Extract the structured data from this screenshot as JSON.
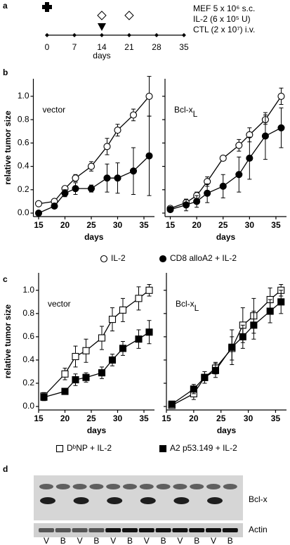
{
  "panels": [
    "a",
    "b",
    "c",
    "d"
  ],
  "timeline": {
    "ticks": [
      0,
      7,
      14,
      21,
      28,
      35
    ],
    "xlabel": "days",
    "events": [
      {
        "label": "MEF 5 x 10⁶ s.c.",
        "days": [
          0
        ]
      },
      {
        "label": "IL-2 (6 x 10⁵ U)",
        "days": [
          14,
          21
        ]
      },
      {
        "label": "CTL (2 x 10⁷) i.v.",
        "days": [
          14
        ]
      }
    ]
  },
  "chart_data": [
    {
      "type": "line",
      "title": "vector",
      "xlabel": "days",
      "ylabel": "relative tumor size",
      "legend": true,
      "xlim": [
        14,
        37
      ],
      "xticks": [
        15,
        20,
        25,
        30,
        35
      ],
      "ylim": [
        -0.03,
        1.15
      ],
      "yticks": [
        {
          "value": 0,
          "label": "0.0"
        },
        0.2,
        0.4,
        0.6,
        0.8,
        {
          "value": 1,
          "label": "1.0"
        }
      ],
      "x": [
        15,
        18,
        20,
        22,
        25,
        28,
        30,
        33,
        36
      ],
      "series": [
        {
          "name": "IL-2",
          "marker": "circle",
          "color": "#000000",
          "fill": "#ffffff",
          "values": [
            0.08,
            0.1,
            0.21,
            0.3,
            0.4,
            0.57,
            0.71,
            0.84,
            1.0
          ],
          "errors": [
            0.01,
            0.01,
            0.02,
            0.03,
            0.04,
            0.07,
            0.05,
            0.05,
            0.17
          ]
        },
        {
          "name": "CD8 alloA2 + IL-2",
          "marker": "circle",
          "color": "#000000",
          "fill": "#000000",
          "values": [
            0.0,
            0.06,
            0.17,
            0.21,
            0.21,
            0.3,
            0.3,
            0.36,
            0.49
          ],
          "errors": [
            0.01,
            0.02,
            0.03,
            0.05,
            0.03,
            0.12,
            0.13,
            0.2,
            0.34
          ]
        }
      ]
    },
    {
      "type": "line",
      "title": "Bcl-x",
      "title_subscript": "L",
      "xlabel": "days",
      "show_ytick_labels": false,
      "xlim": [
        14,
        37
      ],
      "xticks": [
        15,
        20,
        25,
        30,
        35
      ],
      "ylim": [
        -0.03,
        1.15
      ],
      "yticks": [
        0,
        0.2,
        0.4,
        0.6,
        0.8,
        1
      ],
      "x": [
        15,
        18,
        20,
        22,
        25,
        28,
        30,
        33,
        36
      ],
      "series": [
        {
          "marker": "circle",
          "color": "#000000",
          "fill": "#ffffff",
          "values": [
            0.04,
            0.09,
            0.15,
            0.27,
            0.47,
            0.58,
            0.67,
            0.8,
            1.0
          ],
          "errors": [
            0.01,
            0.02,
            0.03,
            0.04,
            0.02,
            0.05,
            0.06,
            0.04,
            0.07
          ]
        },
        {
          "marker": "circle",
          "color": "#000000",
          "fill": "#000000",
          "values": [
            0.03,
            0.07,
            0.1,
            0.17,
            0.23,
            0.33,
            0.47,
            0.66,
            0.73
          ],
          "errors": [
            0.01,
            0.05,
            0.05,
            0.08,
            0.1,
            0.15,
            0.18,
            0.2,
            0.17
          ]
        }
      ]
    },
    {
      "type": "line",
      "title": "vector",
      "xlabel": "days",
      "ylabel": "relative tumor size",
      "legend": true,
      "xlim": [
        15,
        37
      ],
      "xticks": [
        15,
        20,
        25,
        30,
        35
      ],
      "ylim": [
        -0.03,
        1.15
      ],
      "yticks": [
        {
          "value": 0,
          "label": "0.0"
        },
        0.2,
        0.4,
        0.6,
        0.8,
        {
          "value": 1,
          "label": "1.0"
        }
      ],
      "x": [
        16,
        20,
        22,
        24,
        27,
        29,
        31,
        34,
        36
      ],
      "series": [
        {
          "name": "DᵇNP + IL-2",
          "marker": "square",
          "color": "#000000",
          "fill": "#ffffff",
          "values": [
            0.09,
            0.28,
            0.43,
            0.48,
            0.59,
            0.75,
            0.83,
            0.93,
            1.0
          ],
          "errors": [
            0.03,
            0.05,
            0.09,
            0.1,
            0.1,
            0.1,
            0.1,
            0.1,
            0.05
          ]
        },
        {
          "name": "A2 p53.149 + IL-2",
          "marker": "square",
          "color": "#000000",
          "fill": "#000000",
          "values": [
            0.08,
            0.13,
            0.23,
            0.25,
            0.29,
            0.4,
            0.5,
            0.58,
            0.64
          ],
          "errors": [
            0.03,
            0.02,
            0.05,
            0.04,
            0.05,
            0.05,
            0.06,
            0.08,
            0.1
          ]
        }
      ]
    },
    {
      "type": "line",
      "title": "Bcl-x",
      "title_subscript": "L",
      "xlabel": "days",
      "show_ytick_labels": false,
      "xlim": [
        15,
        37
      ],
      "xticks": [
        15,
        20,
        25,
        30,
        35
      ],
      "ylim": [
        -0.03,
        1.15
      ],
      "yticks": [
        0,
        0.2,
        0.4,
        0.6,
        0.8,
        1
      ],
      "x": [
        16,
        20,
        22,
        24,
        27,
        29,
        31,
        34,
        36
      ],
      "series": [
        {
          "marker": "square",
          "color": "#000000",
          "fill": "#ffffff",
          "values": [
            0.01,
            0.11,
            0.25,
            0.33,
            0.5,
            0.7,
            0.78,
            0.92,
            1.0
          ],
          "errors": [
            0.02,
            0.05,
            0.05,
            0.05,
            0.1,
            0.15,
            0.15,
            0.1,
            0.05
          ]
        },
        {
          "marker": "square",
          "color": "#000000",
          "fill": "#000000",
          "values": [
            0.02,
            0.15,
            0.25,
            0.31,
            0.51,
            0.6,
            0.7,
            0.82,
            0.9
          ],
          "errors": [
            0.02,
            0.04,
            0.05,
            0.06,
            0.15,
            0.1,
            0.12,
            0.1,
            0.1
          ]
        }
      ]
    }
  ],
  "blot": {
    "lanes": [
      "V",
      "B",
      "V",
      "B",
      "V",
      "B",
      "V",
      "B",
      "V",
      "B",
      "V",
      "B"
    ],
    "bands": [
      "Bcl-x",
      "Actin"
    ]
  }
}
